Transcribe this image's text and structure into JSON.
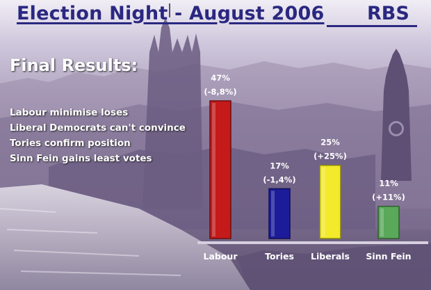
{
  "header": {
    "title": "Election Night - August 2006",
    "brand": "RBS"
  },
  "main": {
    "heading": "Final Results:",
    "headlines": [
      "Labour minimise loses",
      "Liberal Democrats can't convince",
      "Tories confirm position",
      "Sinn Fein gains least votes"
    ]
  },
  "colors": {
    "title": "#2a2880",
    "labour": "#c41a1a",
    "tories": "#1c1c9a",
    "liberals": "#f2ea2a",
    "sinn_fein": "#5aa85a"
  },
  "chart_data": {
    "type": "bar",
    "title": "",
    "xlabel": "",
    "ylabel": "",
    "categories": [
      "Labour",
      "Tories",
      "Liberals",
      "Sinn Fein"
    ],
    "values": [
      47,
      17,
      25,
      11
    ],
    "value_labels": [
      "47%",
      "17%",
      "25%",
      "11%"
    ],
    "change_labels": [
      "(-8,8%)",
      "(-1,4%)",
      "(+25%)",
      "(+11%)"
    ],
    "colors": [
      "#c41a1a",
      "#1c1c9a",
      "#f2ea2a",
      "#5aa85a"
    ],
    "ylim": [
      0,
      50
    ],
    "grid": false,
    "legend": "none"
  }
}
